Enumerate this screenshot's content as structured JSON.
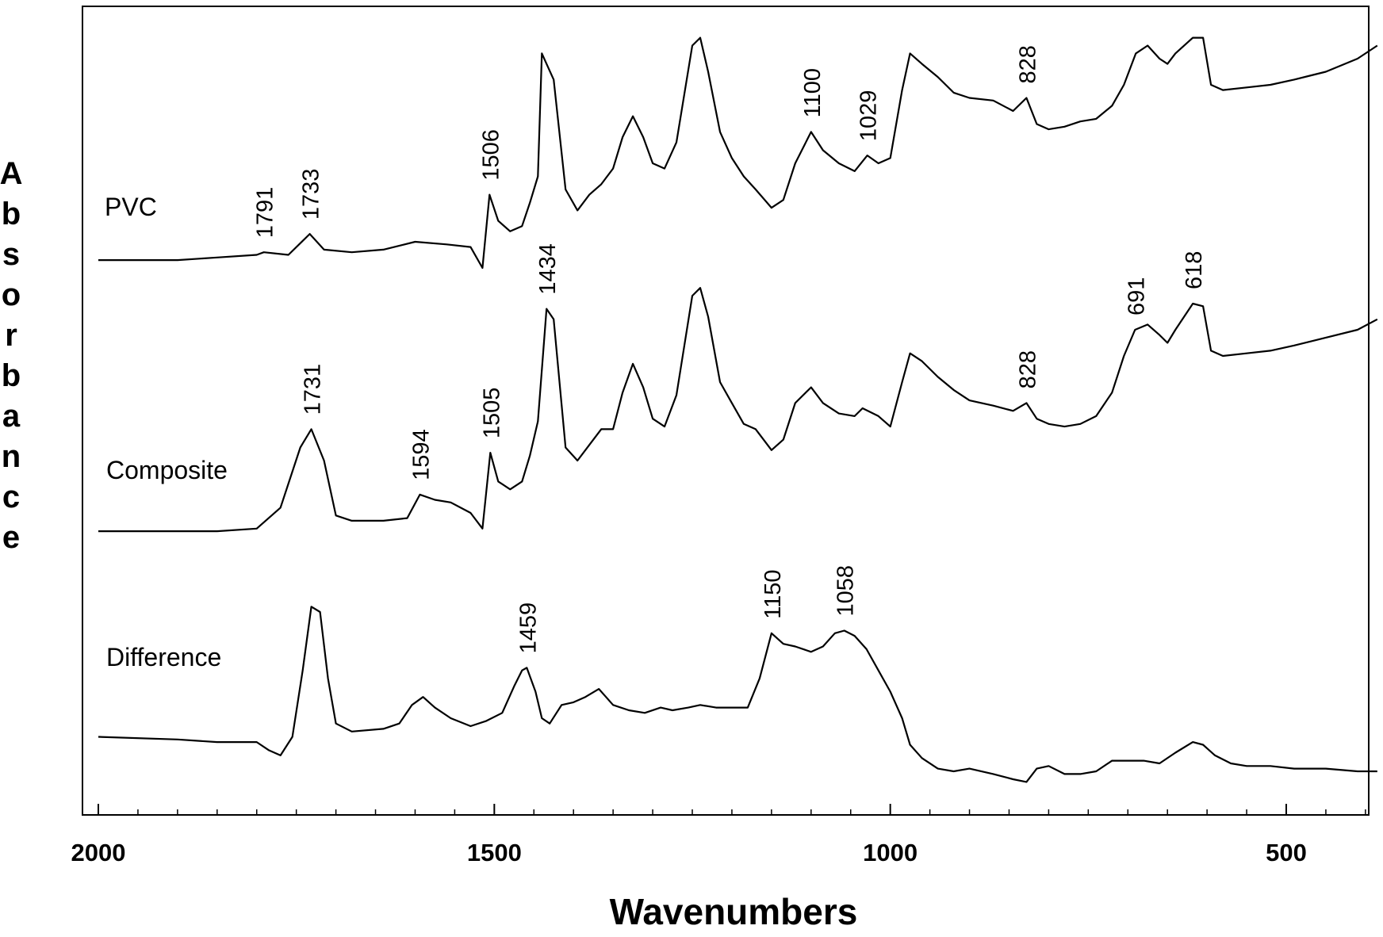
{
  "chart_data": {
    "type": "line",
    "title": "",
    "xlabel": "Wavenumbers",
    "ylabel": "Absorbance",
    "xlim": [
      2000,
      380
    ],
    "x_reversed": true,
    "x_ticks": [
      2000,
      1500,
      1000,
      500
    ],
    "y_ticks": [],
    "grid": false,
    "legend": "none",
    "series": [
      {
        "name": "PVC",
        "points": [
          [
            2000,
            0.03
          ],
          [
            1900,
            0.03
          ],
          [
            1850,
            0.04
          ],
          [
            1800,
            0.05
          ],
          [
            1791,
            0.06
          ],
          [
            1760,
            0.05
          ],
          [
            1733,
            0.13
          ],
          [
            1715,
            0.07
          ],
          [
            1680,
            0.06
          ],
          [
            1640,
            0.07
          ],
          [
            1600,
            0.1
          ],
          [
            1560,
            0.09
          ],
          [
            1530,
            0.08
          ],
          [
            1515,
            0.0
          ],
          [
            1506,
            0.28
          ],
          [
            1495,
            0.18
          ],
          [
            1480,
            0.14
          ],
          [
            1465,
            0.16
          ],
          [
            1455,
            0.25
          ],
          [
            1445,
            0.35
          ],
          [
            1440,
            0.82
          ],
          [
            1434,
            0.78
          ],
          [
            1425,
            0.72
          ],
          [
            1410,
            0.3
          ],
          [
            1395,
            0.22
          ],
          [
            1380,
            0.28
          ],
          [
            1365,
            0.32
          ],
          [
            1350,
            0.38
          ],
          [
            1338,
            0.5
          ],
          [
            1325,
            0.58
          ],
          [
            1312,
            0.5
          ],
          [
            1300,
            0.4
          ],
          [
            1285,
            0.38
          ],
          [
            1270,
            0.48
          ],
          [
            1250,
            0.85
          ],
          [
            1240,
            0.88
          ],
          [
            1230,
            0.75
          ],
          [
            1215,
            0.52
          ],
          [
            1200,
            0.42
          ],
          [
            1185,
            0.35
          ],
          [
            1170,
            0.3
          ],
          [
            1150,
            0.23
          ],
          [
            1135,
            0.26
          ],
          [
            1120,
            0.4
          ],
          [
            1100,
            0.52
          ],
          [
            1085,
            0.45
          ],
          [
            1065,
            0.4
          ],
          [
            1045,
            0.37
          ],
          [
            1029,
            0.43
          ],
          [
            1015,
            0.4
          ],
          [
            1000,
            0.42
          ],
          [
            985,
            0.68
          ],
          [
            975,
            0.82
          ],
          [
            960,
            0.78
          ],
          [
            940,
            0.73
          ],
          [
            920,
            0.67
          ],
          [
            900,
            0.65
          ],
          [
            870,
            0.64
          ],
          [
            845,
            0.6
          ],
          [
            828,
            0.65
          ],
          [
            815,
            0.55
          ],
          [
            800,
            0.53
          ],
          [
            780,
            0.54
          ],
          [
            760,
            0.56
          ],
          [
            740,
            0.57
          ],
          [
            720,
            0.62
          ],
          [
            705,
            0.7
          ],
          [
            690,
            0.82
          ],
          [
            675,
            0.85
          ],
          [
            660,
            0.8
          ],
          [
            650,
            0.78
          ],
          [
            640,
            0.82
          ],
          [
            618,
            0.88
          ],
          [
            605,
            0.88
          ],
          [
            595,
            0.7
          ],
          [
            580,
            0.68
          ],
          [
            550,
            0.69
          ],
          [
            520,
            0.7
          ],
          [
            490,
            0.72
          ],
          [
            450,
            0.75
          ],
          [
            410,
            0.8
          ],
          [
            385,
            0.85
          ]
        ]
      },
      {
        "name": "Composite",
        "points": [
          [
            2000,
            0.03
          ],
          [
            1850,
            0.03
          ],
          [
            1800,
            0.04
          ],
          [
            1770,
            0.12
          ],
          [
            1745,
            0.35
          ],
          [
            1731,
            0.42
          ],
          [
            1715,
            0.3
          ],
          [
            1700,
            0.09
          ],
          [
            1680,
            0.07
          ],
          [
            1640,
            0.07
          ],
          [
            1610,
            0.08
          ],
          [
            1594,
            0.17
          ],
          [
            1575,
            0.15
          ],
          [
            1555,
            0.14
          ],
          [
            1530,
            0.1
          ],
          [
            1515,
            0.04
          ],
          [
            1505,
            0.33
          ],
          [
            1495,
            0.22
          ],
          [
            1480,
            0.19
          ],
          [
            1465,
            0.22
          ],
          [
            1455,
            0.32
          ],
          [
            1445,
            0.45
          ],
          [
            1434,
            0.88
          ],
          [
            1425,
            0.84
          ],
          [
            1410,
            0.35
          ],
          [
            1395,
            0.3
          ],
          [
            1380,
            0.36
          ],
          [
            1365,
            0.42
          ],
          [
            1350,
            0.42
          ],
          [
            1338,
            0.56
          ],
          [
            1325,
            0.67
          ],
          [
            1312,
            0.58
          ],
          [
            1300,
            0.46
          ],
          [
            1285,
            0.43
          ],
          [
            1270,
            0.55
          ],
          [
            1250,
            0.93
          ],
          [
            1240,
            0.96
          ],
          [
            1230,
            0.85
          ],
          [
            1215,
            0.6
          ],
          [
            1200,
            0.52
          ],
          [
            1185,
            0.44
          ],
          [
            1170,
            0.42
          ],
          [
            1150,
            0.34
          ],
          [
            1135,
            0.38
          ],
          [
            1120,
            0.52
          ],
          [
            1100,
            0.58
          ],
          [
            1085,
            0.52
          ],
          [
            1065,
            0.48
          ],
          [
            1045,
            0.47
          ],
          [
            1035,
            0.5
          ],
          [
            1015,
            0.47
          ],
          [
            1000,
            0.43
          ],
          [
            985,
            0.6
          ],
          [
            975,
            0.71
          ],
          [
            960,
            0.68
          ],
          [
            940,
            0.62
          ],
          [
            920,
            0.57
          ],
          [
            900,
            0.53
          ],
          [
            870,
            0.51
          ],
          [
            845,
            0.49
          ],
          [
            828,
            0.52
          ],
          [
            815,
            0.46
          ],
          [
            800,
            0.44
          ],
          [
            780,
            0.43
          ],
          [
            760,
            0.44
          ],
          [
            740,
            0.47
          ],
          [
            720,
            0.56
          ],
          [
            705,
            0.7
          ],
          [
            691,
            0.8
          ],
          [
            675,
            0.82
          ],
          [
            660,
            0.78
          ],
          [
            650,
            0.75
          ],
          [
            640,
            0.8
          ],
          [
            618,
            0.9
          ],
          [
            605,
            0.89
          ],
          [
            595,
            0.72
          ],
          [
            580,
            0.7
          ],
          [
            550,
            0.71
          ],
          [
            520,
            0.72
          ],
          [
            490,
            0.74
          ],
          [
            450,
            0.77
          ],
          [
            410,
            0.8
          ],
          [
            385,
            0.84
          ]
        ]
      },
      {
        "name": "Difference",
        "points": [
          [
            2000,
            0.33
          ],
          [
            1900,
            0.32
          ],
          [
            1850,
            0.31
          ],
          [
            1800,
            0.31
          ],
          [
            1785,
            0.28
          ],
          [
            1770,
            0.26
          ],
          [
            1755,
            0.33
          ],
          [
            1742,
            0.58
          ],
          [
            1731,
            0.82
          ],
          [
            1720,
            0.8
          ],
          [
            1710,
            0.55
          ],
          [
            1700,
            0.38
          ],
          [
            1680,
            0.35
          ],
          [
            1640,
            0.36
          ],
          [
            1620,
            0.38
          ],
          [
            1604,
            0.45
          ],
          [
            1590,
            0.48
          ],
          [
            1575,
            0.44
          ],
          [
            1555,
            0.4
          ],
          [
            1530,
            0.37
          ],
          [
            1510,
            0.39
          ],
          [
            1490,
            0.42
          ],
          [
            1475,
            0.52
          ],
          [
            1465,
            0.58
          ],
          [
            1459,
            0.59
          ],
          [
            1448,
            0.5
          ],
          [
            1440,
            0.4
          ],
          [
            1430,
            0.38
          ],
          [
            1415,
            0.45
          ],
          [
            1400,
            0.46
          ],
          [
            1385,
            0.48
          ],
          [
            1368,
            0.51
          ],
          [
            1350,
            0.45
          ],
          [
            1330,
            0.43
          ],
          [
            1310,
            0.42
          ],
          [
            1290,
            0.44
          ],
          [
            1275,
            0.43
          ],
          [
            1255,
            0.44
          ],
          [
            1240,
            0.45
          ],
          [
            1220,
            0.44
          ],
          [
            1200,
            0.44
          ],
          [
            1180,
            0.44
          ],
          [
            1165,
            0.55
          ],
          [
            1150,
            0.72
          ],
          [
            1135,
            0.68
          ],
          [
            1120,
            0.67
          ],
          [
            1100,
            0.65
          ],
          [
            1085,
            0.67
          ],
          [
            1070,
            0.72
          ],
          [
            1058,
            0.73
          ],
          [
            1045,
            0.71
          ],
          [
            1030,
            0.66
          ],
          [
            1015,
            0.58
          ],
          [
            1000,
            0.5
          ],
          [
            985,
            0.4
          ],
          [
            975,
            0.3
          ],
          [
            960,
            0.25
          ],
          [
            940,
            0.21
          ],
          [
            920,
            0.2
          ],
          [
            900,
            0.21
          ],
          [
            870,
            0.19
          ],
          [
            845,
            0.17
          ],
          [
            828,
            0.16
          ],
          [
            815,
            0.21
          ],
          [
            800,
            0.22
          ],
          [
            780,
            0.19
          ],
          [
            760,
            0.19
          ],
          [
            740,
            0.2
          ],
          [
            720,
            0.24
          ],
          [
            700,
            0.24
          ],
          [
            680,
            0.24
          ],
          [
            660,
            0.23
          ],
          [
            640,
            0.27
          ],
          [
            618,
            0.31
          ],
          [
            605,
            0.3
          ],
          [
            590,
            0.26
          ],
          [
            570,
            0.23
          ],
          [
            550,
            0.22
          ],
          [
            520,
            0.22
          ],
          [
            490,
            0.21
          ],
          [
            450,
            0.21
          ],
          [
            410,
            0.2
          ],
          [
            385,
            0.2
          ]
        ]
      }
    ],
    "series_labels": [
      "PVC",
      "Composite",
      "Difference"
    ],
    "annotations": [
      {
        "text": "1791",
        "series": 0,
        "x": 1791
      },
      {
        "text": "1733",
        "series": 0,
        "x": 1733
      },
      {
        "text": "1506",
        "series": 0,
        "x": 1506
      },
      {
        "text": "1100",
        "series": 0,
        "x": 1100
      },
      {
        "text": "1029",
        "series": 0,
        "x": 1029
      },
      {
        "text": "828",
        "series": 0,
        "x": 828
      },
      {
        "text": "1434",
        "series": 1,
        "x": 1434
      },
      {
        "text": "1731",
        "series": 1,
        "x": 1731
      },
      {
        "text": "1594",
        "series": 1,
        "x": 1594
      },
      {
        "text": "1505",
        "series": 1,
        "x": 1505
      },
      {
        "text": "828",
        "series": 1,
        "x": 828
      },
      {
        "text": "691",
        "series": 1,
        "x": 691
      },
      {
        "text": "618",
        "series": 1,
        "x": 618
      },
      {
        "text": "1459",
        "series": 2,
        "x": 1459
      },
      {
        "text": "1150",
        "series": 2,
        "x": 1150
      },
      {
        "text": "1058",
        "series": 2,
        "x": 1058
      }
    ]
  }
}
